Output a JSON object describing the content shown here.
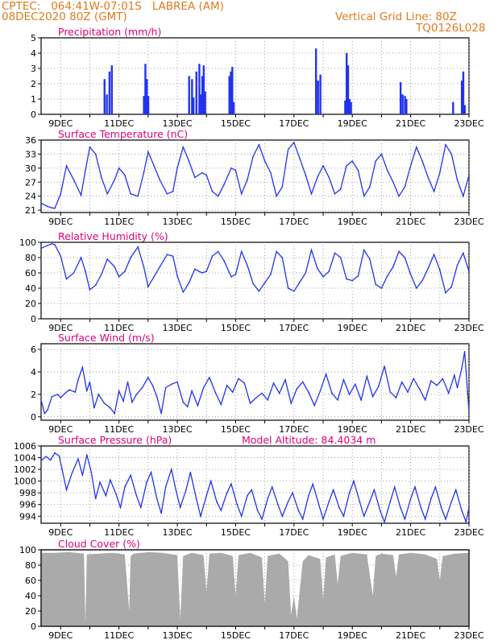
{
  "header": {
    "station_line": "CPTEC:   064:41W-07:01S   LABREA (AM)",
    "date_line": "08DEC2020 80Z (GMT)",
    "grid_note": "Vertical Grid Line: 80Z",
    "code": "TQ0126L028"
  },
  "colors": {
    "header": "#e07a1a",
    "title": "#e0007a",
    "line": "#2233ee",
    "bar": "#2233ee",
    "cloud": "#aaaaaa",
    "grid": "#888888"
  },
  "chart_data": [
    {
      "id": "precip",
      "type": "bar",
      "title": "Precipitation (mm/h)",
      "x_domain_days": [
        8.33,
        23.0
      ],
      "ylim": [
        0,
        5
      ],
      "yticks": [
        "0",
        "1",
        "2",
        "3",
        "4",
        "5"
      ],
      "xticks": [
        "9DEC",
        "11DEC",
        "13DEC",
        "15DEC",
        "17DEC",
        "19DEC",
        "21DEC",
        "23DEC"
      ],
      "x": [
        10.5,
        10.58,
        10.67,
        10.75,
        11.85,
        11.9,
        11.95,
        12.0,
        13.4,
        13.5,
        13.55,
        13.65,
        13.75,
        13.8,
        13.85,
        13.9,
        13.95,
        14.78,
        14.83,
        14.88,
        14.93,
        17.75,
        17.82,
        17.9,
        18.75,
        18.8,
        18.85,
        18.9,
        18.95,
        20.65,
        20.72,
        20.8,
        20.85,
        22.45,
        22.75,
        22.8,
        22.85
      ],
      "values": [
        2.3,
        1.3,
        2.8,
        3.2,
        1.2,
        3.3,
        2.3,
        1.2,
        2.5,
        2.3,
        1.1,
        2.8,
        3.3,
        1.3,
        2.5,
        3.2,
        1.5,
        2.5,
        2.8,
        3.1,
        0.8,
        4.3,
        2.2,
        2.6,
        0.9,
        4.0,
        3.2,
        1.0,
        0.8,
        2.1,
        1.3,
        1.2,
        1.0,
        0.8,
        2.2,
        2.8,
        0.6
      ]
    },
    {
      "id": "temp",
      "type": "line",
      "title": "Surface Temperature (nC)",
      "x_domain_days": [
        8.33,
        23.0
      ],
      "ylim": [
        20.5,
        36
      ],
      "yticks": [
        "21",
        "24",
        "27",
        "30",
        "33",
        "36"
      ],
      "xticks": [
        "9DEC",
        "11DEC",
        "13DEC",
        "15DEC",
        "17DEC",
        "19DEC",
        "21DEC",
        "23DEC"
      ],
      "x": [
        8.33,
        8.55,
        8.7,
        8.8,
        9.0,
        9.2,
        9.45,
        9.7,
        9.85,
        10.0,
        10.2,
        10.4,
        10.6,
        10.85,
        11.0,
        11.2,
        11.4,
        11.65,
        11.85,
        12.0,
        12.2,
        12.4,
        12.65,
        12.85,
        13.0,
        13.2,
        13.4,
        13.6,
        13.85,
        14.0,
        14.2,
        14.4,
        14.6,
        14.85,
        15.0,
        15.2,
        15.4,
        15.6,
        15.8,
        16.0,
        16.2,
        16.4,
        16.6,
        16.8,
        17.0,
        17.2,
        17.4,
        17.6,
        17.8,
        18.0,
        18.2,
        18.4,
        18.6,
        18.8,
        19.0,
        19.2,
        19.4,
        19.6,
        19.8,
        20.0,
        20.2,
        20.4,
        20.6,
        20.8,
        21.0,
        21.2,
        21.4,
        21.6,
        21.8,
        22.0,
        22.2,
        22.4,
        22.6,
        22.8,
        23.0
      ],
      "values": [
        22.5,
        21.8,
        21.5,
        21.4,
        24.5,
        30.5,
        27.5,
        24.2,
        29.5,
        34.5,
        33.0,
        28.0,
        24.5,
        27.5,
        30.0,
        28.5,
        24.5,
        24.0,
        29.0,
        33.5,
        30.5,
        27.5,
        24.5,
        25.0,
        30.0,
        34.5,
        31.5,
        28.0,
        29.0,
        28.5,
        25.0,
        24.0,
        26.5,
        30.0,
        29.5,
        24.5,
        27.5,
        32.5,
        35.0,
        31.5,
        29.0,
        24.0,
        26.0,
        34.0,
        35.5,
        32.0,
        28.5,
        24.5,
        28.0,
        30.5,
        28.0,
        24.5,
        25.5,
        30.5,
        31.5,
        29.5,
        24.0,
        26.0,
        31.5,
        33.0,
        29.5,
        27.0,
        24.0,
        26.0,
        30.5,
        34.5,
        31.5,
        28.0,
        25.0,
        29.0,
        35.0,
        33.0,
        27.5,
        24.0,
        28.5
      ]
    },
    {
      "id": "rh",
      "type": "line",
      "title": "Relative Humidity (%)",
      "x_domain_days": [
        8.33,
        23.0
      ],
      "ylim": [
        0,
        100
      ],
      "yticks": [
        "0",
        "20",
        "40",
        "60",
        "80",
        "100"
      ],
      "xticks": [
        "9DEC",
        "11DEC",
        "13DEC",
        "15DEC",
        "17DEC",
        "19DEC",
        "21DEC",
        "23DEC"
      ],
      "x": [
        8.33,
        8.55,
        8.7,
        8.8,
        9.0,
        9.2,
        9.45,
        9.7,
        9.85,
        10.0,
        10.2,
        10.4,
        10.6,
        10.85,
        11.0,
        11.2,
        11.4,
        11.65,
        11.85,
        12.0,
        12.2,
        12.4,
        12.65,
        12.85,
        13.0,
        13.2,
        13.4,
        13.6,
        13.85,
        14.0,
        14.2,
        14.4,
        14.6,
        14.85,
        15.0,
        15.2,
        15.4,
        15.6,
        15.8,
        16.0,
        16.2,
        16.4,
        16.6,
        16.8,
        17.0,
        17.2,
        17.4,
        17.6,
        17.8,
        18.0,
        18.2,
        18.4,
        18.6,
        18.8,
        19.0,
        19.2,
        19.4,
        19.6,
        19.8,
        20.0,
        20.2,
        20.4,
        20.6,
        20.8,
        21.0,
        21.2,
        21.4,
        21.6,
        21.8,
        22.0,
        22.2,
        22.4,
        22.6,
        22.8,
        23.0
      ],
      "values": [
        92,
        96,
        98,
        97,
        82,
        52,
        60,
        80,
        62,
        38,
        44,
        58,
        78,
        68,
        55,
        62,
        80,
        94,
        68,
        42,
        55,
        68,
        84,
        82,
        56,
        35,
        47,
        65,
        60,
        62,
        82,
        88,
        76,
        55,
        58,
        88,
        70,
        46,
        36,
        47,
        58,
        88,
        80,
        40,
        36,
        48,
        60,
        90,
        66,
        55,
        62,
        86,
        80,
        52,
        50,
        56,
        90,
        78,
        45,
        40,
        56,
        68,
        88,
        80,
        58,
        40,
        50,
        66,
        84,
        64,
        34,
        42,
        70,
        86,
        62
      ]
    },
    {
      "id": "wind",
      "type": "line",
      "title": "Surface Wind (m/s)",
      "x_domain_days": [
        8.33,
        23.0
      ],
      "ylim": [
        -0.3,
        6.5
      ],
      "yticks": [
        "0",
        "2",
        "4",
        "6"
      ],
      "xticks": [
        "9DEC",
        "11DEC",
        "13DEC",
        "15DEC",
        "17DEC",
        "19DEC",
        "21DEC",
        "23DEC"
      ],
      "x": [
        8.33,
        8.45,
        8.55,
        8.7,
        8.9,
        9.0,
        9.15,
        9.3,
        9.5,
        9.6,
        9.75,
        9.9,
        10.0,
        10.15,
        10.3,
        10.5,
        10.7,
        10.85,
        11.0,
        11.15,
        11.3,
        11.45,
        11.6,
        11.8,
        12.0,
        12.15,
        12.3,
        12.45,
        12.6,
        12.8,
        13.0,
        13.2,
        13.35,
        13.5,
        13.7,
        13.9,
        14.1,
        14.3,
        14.5,
        14.7,
        14.9,
        15.1,
        15.3,
        15.5,
        15.7,
        15.9,
        16.1,
        16.3,
        16.5,
        16.7,
        16.9,
        17.1,
        17.3,
        17.5,
        17.7,
        17.9,
        18.1,
        18.3,
        18.5,
        18.7,
        18.9,
        19.1,
        19.3,
        19.5,
        19.7,
        19.9,
        20.1,
        20.3,
        20.5,
        20.7,
        20.9,
        21.1,
        21.3,
        21.5,
        21.7,
        21.9,
        22.1,
        22.3,
        22.5,
        22.6,
        22.75,
        22.85,
        22.95,
        23.0
      ],
      "values": [
        1.5,
        0.3,
        0.6,
        1.8,
        2.0,
        1.7,
        2.1,
        2.4,
        2.2,
        3.3,
        4.4,
        2.3,
        3.1,
        0.8,
        2.0,
        1.2,
        0.8,
        0.3,
        2.3,
        1.4,
        3.1,
        1.3,
        2.0,
        2.6,
        3.5,
        2.8,
        1.8,
        0.3,
        2.6,
        2.9,
        3.1,
        1.3,
        0.9,
        2.3,
        1.0,
        2.6,
        3.5,
        2.2,
        1.1,
        2.8,
        2.2,
        3.4,
        3.0,
        1.2,
        1.7,
        2.1,
        1.5,
        3.0,
        2.1,
        3.3,
        1.2,
        2.5,
        3.1,
        2.2,
        1.0,
        2.3,
        3.8,
        2.1,
        1.5,
        3.3,
        2.0,
        2.9,
        1.5,
        3.6,
        1.8,
        2.7,
        4.5,
        2.2,
        1.7,
        3.1,
        2.2,
        3.4,
        2.5,
        1.5,
        3.2,
        2.8,
        3.4,
        2.1,
        3.7,
        2.6,
        4.3,
        5.8,
        2.2,
        0.5
      ]
    },
    {
      "id": "press",
      "type": "line",
      "title": "Surface Pressure (hPa)",
      "annotation": "Model Altitude: 84.4034 m",
      "x_domain_days": [
        8.33,
        23.0
      ],
      "ylim": [
        992.8,
        1006
      ],
      "yticks": [
        "994",
        "996",
        "998",
        "1000",
        "1002",
        "1004",
        "1006"
      ],
      "xticks": [
        "9DEC",
        "11DEC",
        "13DEC",
        "15DEC",
        "17DEC",
        "19DEC",
        "21DEC",
        "23DEC"
      ],
      "x": [
        8.33,
        8.5,
        8.65,
        8.8,
        8.95,
        9.05,
        9.2,
        9.4,
        9.6,
        9.75,
        9.9,
        10.05,
        10.2,
        10.35,
        10.55,
        10.7,
        10.9,
        11.05,
        11.2,
        11.4,
        11.6,
        11.75,
        11.95,
        12.1,
        12.3,
        12.45,
        12.6,
        12.8,
        12.95,
        13.1,
        13.3,
        13.45,
        13.65,
        13.8,
        14.0,
        14.15,
        14.35,
        14.5,
        14.7,
        14.85,
        15.05,
        15.2,
        15.4,
        15.55,
        15.75,
        15.9,
        16.1,
        16.25,
        16.45,
        16.6,
        16.8,
        16.95,
        17.15,
        17.3,
        17.5,
        17.65,
        17.85,
        18.0,
        18.2,
        18.35,
        18.55,
        18.7,
        18.9,
        19.05,
        19.25,
        19.4,
        19.6,
        19.75,
        19.95,
        20.1,
        20.3,
        20.45,
        20.65,
        20.8,
        21.0,
        21.15,
        21.35,
        21.5,
        21.7,
        21.85,
        22.05,
        22.2,
        22.4,
        22.55,
        22.75,
        22.9,
        23.0
      ],
      "values": [
        1003.5,
        1004.2,
        1003.6,
        1004.8,
        1004.3,
        1002.0,
        998.5,
        1001.5,
        1003.8,
        1001.0,
        1004.5,
        1001.5,
        997.0,
        999.8,
        997.5,
        1000.2,
        997.8,
        995.5,
        999.0,
        1001.0,
        997.5,
        995.5,
        999.8,
        1001.5,
        997.0,
        994.5,
        999.0,
        1002.0,
        998.5,
        995.5,
        998.5,
        1001.5,
        997.0,
        994.0,
        997.5,
        1000.0,
        996.5,
        995.0,
        998.0,
        999.5,
        996.0,
        994.0,
        997.5,
        998.5,
        995.0,
        993.5,
        997.0,
        999.0,
        996.0,
        994.0,
        996.5,
        998.0,
        995.0,
        993.5,
        997.5,
        999.5,
        996.0,
        993.5,
        996.5,
        998.5,
        995.5,
        994.0,
        998.0,
        1000.0,
        996.5,
        994.0,
        996.5,
        998.5,
        995.0,
        993.0,
        996.5,
        999.0,
        995.5,
        993.5,
        997.0,
        999.0,
        995.5,
        993.5,
        997.0,
        999.0,
        995.5,
        993.5,
        996.5,
        998.5,
        995.0,
        993.0,
        995.5
      ]
    },
    {
      "id": "cloud",
      "type": "area",
      "title": "Cloud Cover (%)",
      "x_domain_days": [
        8.33,
        23.0
      ],
      "ylim": [
        0,
        100
      ],
      "yticks": [
        "0",
        "20",
        "40",
        "60",
        "80",
        "100"
      ],
      "xticks": [
        "9DEC",
        "11DEC",
        "13DEC",
        "15DEC",
        "17DEC",
        "19DEC",
        "21DEC",
        "23DEC"
      ],
      "x": [
        8.33,
        8.8,
        9.3,
        9.8,
        9.85,
        9.9,
        10.3,
        10.8,
        11.2,
        11.35,
        11.4,
        11.5,
        12.0,
        12.5,
        13.0,
        13.1,
        13.2,
        13.5,
        13.9,
        14.0,
        14.1,
        14.5,
        14.9,
        15.0,
        15.1,
        15.5,
        15.9,
        16.0,
        16.1,
        16.5,
        16.8,
        16.9,
        17.0,
        17.1,
        17.3,
        17.5,
        17.9,
        18.0,
        18.1,
        18.4,
        18.5,
        18.6,
        19.0,
        19.5,
        19.7,
        19.8,
        20.0,
        20.4,
        20.5,
        20.6,
        21.0,
        21.5,
        21.9,
        22.0,
        22.1,
        22.5,
        23.0
      ],
      "values": [
        96,
        96,
        97,
        95,
        5,
        94,
        95,
        96,
        94,
        20,
        92,
        95,
        97,
        96,
        93,
        10,
        92,
        96,
        93,
        45,
        95,
        96,
        92,
        40,
        93,
        96,
        90,
        30,
        92,
        95,
        85,
        15,
        40,
        10,
        85,
        93,
        88,
        35,
        90,
        94,
        55,
        92,
        96,
        94,
        40,
        92,
        95,
        93,
        65,
        94,
        96,
        94,
        88,
        60,
        92,
        95,
        96
      ]
    }
  ]
}
